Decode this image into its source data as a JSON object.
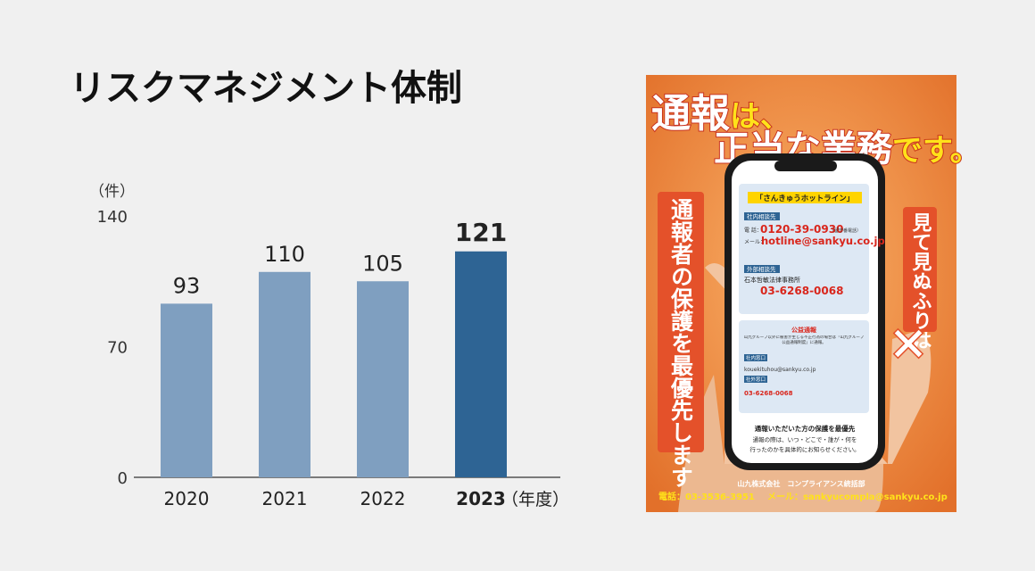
{
  "chart_data": {
    "type": "bar",
    "title": "リスクマネジメント体制",
    "y_unit": "（件）",
    "x_unit": "（年度）",
    "categories": [
      "2020",
      "2021",
      "2022",
      "2023"
    ],
    "values": [
      93,
      110,
      105,
      121
    ],
    "colors": [
      "#7f9fc0",
      "#7f9fc0",
      "#7f9fc0",
      "#2e6494"
    ],
    "highlight": "2023",
    "ylim": [
      0,
      140
    ],
    "yticks": [
      0,
      70,
      140
    ],
    "grid": false
  },
  "poster": {
    "headline": [
      "通報",
      "は、",
      "正当な業務",
      "です。"
    ],
    "left_band": "通報者の保護を最優先します",
    "right_band": "見て見ぬふりは",
    "cross": "✕",
    "hotline": "「さんきゅうホットライン」",
    "internal": "社内相談先",
    "phone_label": "電 話：",
    "phone": "0120-39-0930",
    "phone_note": "（留守番電話）",
    "mail_label": "メール：",
    "mail": "hotline@sankyu.co.jp",
    "external": "外部相談先",
    "law_firm": "石本哲敏法律事務所",
    "law_phone": "03-6268-0068",
    "public": "公益通報",
    "public_note": "山九グループ以外に被害が生じる不正行為の場合は「山九グループ公益通報制度」に通報。",
    "in_window": "社内窓口",
    "in_mail": "kouekituhou@sankyu.co.jp",
    "out_window": "社外窓口",
    "out_phone": "03-6268-0068",
    "protect": "通報いただいた方の保護を最優先",
    "notice1": "通報の際は、いつ・どこで・誰が・何を",
    "notice2": "行ったのかを具体的にお知らせください。",
    "company": "山九株式会社　コンプライアンス統括部",
    "tel": "電話：03-3536-3951",
    "email": "メール：sankyucompla@sankyu.co.jp"
  }
}
